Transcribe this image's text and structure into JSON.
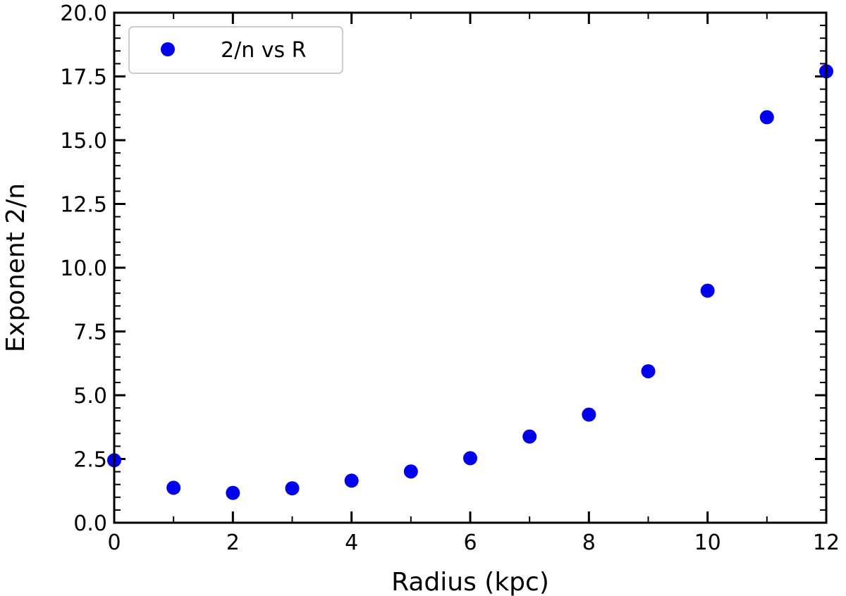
{
  "chart_data": {
    "type": "scatter",
    "title": "",
    "xlabel": "Radius (kpc)",
    "ylabel": "Exponent 2/n",
    "xlim": [
      0,
      12
    ],
    "ylim": [
      0,
      20
    ],
    "x_ticks": [
      0,
      2,
      4,
      6,
      8,
      10,
      12
    ],
    "y_ticks": [
      0.0,
      2.5,
      5.0,
      7.5,
      10.0,
      12.5,
      15.0,
      17.5,
      20.0
    ],
    "x_tick_labels": [
      "0",
      "2",
      "4",
      "6",
      "8",
      "10",
      "12"
    ],
    "y_tick_labels": [
      "0.0",
      "2.5",
      "5.0",
      "7.5",
      "10.0",
      "12.5",
      "15.0",
      "17.5",
      "20.0"
    ],
    "grid": false,
    "legend_position": "top-left",
    "series": [
      {
        "name": "2/n vs R",
        "color": "#0000ee",
        "x": [
          0,
          1,
          2,
          3,
          4,
          5,
          6,
          7,
          8,
          9,
          10,
          11,
          12
        ],
        "y": [
          2.45,
          1.37,
          1.17,
          1.35,
          1.65,
          2.01,
          2.53,
          3.38,
          4.24,
          5.94,
          9.1,
          15.9,
          17.7
        ]
      }
    ]
  }
}
